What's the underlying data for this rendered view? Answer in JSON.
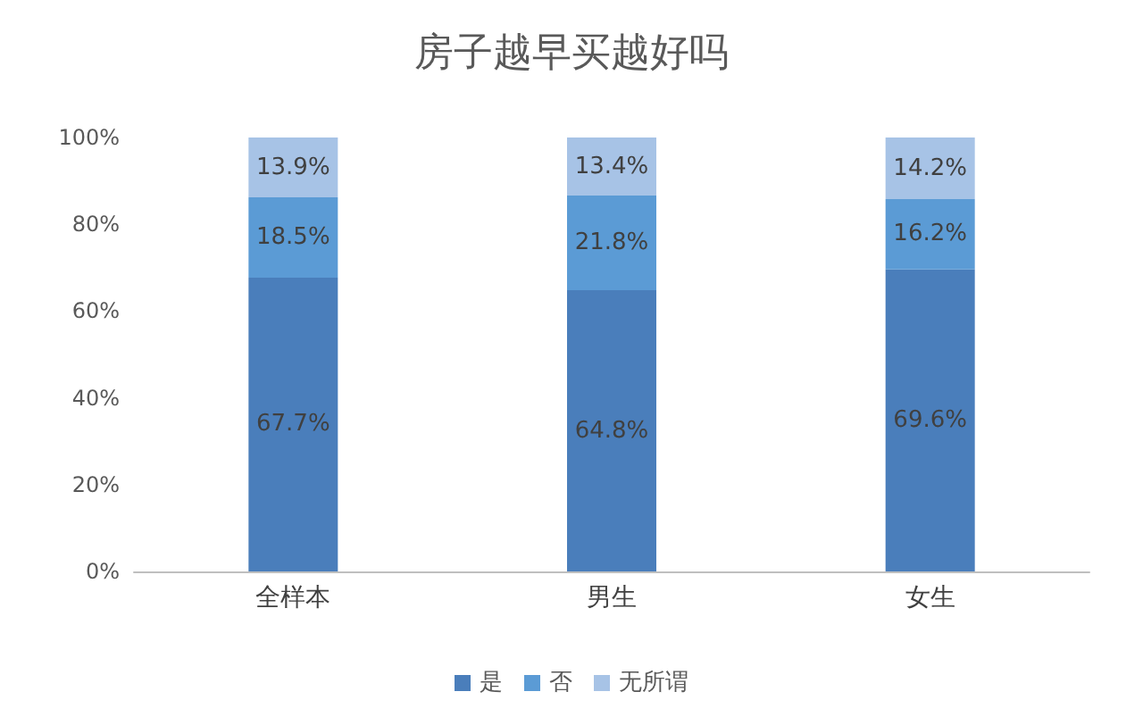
{
  "chart_data": {
    "type": "bar",
    "title": "房子越早买越好吗",
    "categories": [
      "全样本",
      "男生",
      "女生"
    ],
    "stacked": true,
    "series": [
      {
        "name": "是",
        "color": "#4a7ebb",
        "values": [
          67.7,
          64.8,
          69.6
        ],
        "value_labels": [
          "67.7%",
          "64.8%",
          "69.6%"
        ]
      },
      {
        "name": "否",
        "color": "#5b9bd5",
        "values": [
          18.5,
          21.8,
          16.2
        ],
        "value_labels": [
          "18.5%",
          "21.8%",
          "16.2%"
        ]
      },
      {
        "name": "无所谓",
        "color": "#a7c3e6",
        "values": [
          13.9,
          13.4,
          14.2
        ],
        "value_labels": [
          "13.9%",
          "13.4%",
          "14.2%"
        ]
      }
    ],
    "ylim": [
      0,
      100
    ],
    "yticks": [
      {
        "value": 0,
        "label": "0%"
      },
      {
        "value": 20,
        "label": "20%"
      },
      {
        "value": 40,
        "label": "40%"
      },
      {
        "value": 60,
        "label": "60%"
      },
      {
        "value": 80,
        "label": "80%"
      },
      {
        "value": 100,
        "label": "100%"
      }
    ],
    "grid": false,
    "legend": "bottom"
  }
}
